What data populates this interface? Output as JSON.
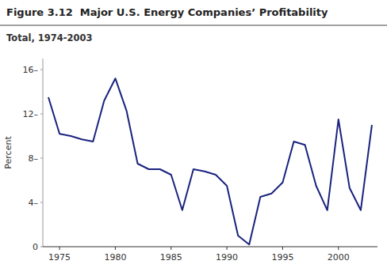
{
  "chart_data": {
    "type": "line",
    "title": "Figure 3.12  Major U.S. Energy Companies’ Profitability",
    "subtitle": "Total, 1974-2003",
    "ylabel": "Percent",
    "x": [
      1974,
      1975,
      1976,
      1977,
      1978,
      1979,
      1980,
      1981,
      1982,
      1983,
      1984,
      1985,
      1986,
      1987,
      1988,
      1989,
      1990,
      1991,
      1992,
      1993,
      1994,
      1995,
      1996,
      1997,
      1998,
      1999,
      2000,
      2001,
      2002,
      2003
    ],
    "values": [
      13.5,
      10.2,
      10.0,
      9.7,
      9.5,
      13.2,
      15.2,
      12.3,
      7.5,
      7.0,
      7.0,
      6.5,
      3.3,
      7.0,
      6.8,
      6.5,
      5.5,
      1.0,
      0.2,
      4.5,
      4.8,
      5.8,
      9.5,
      9.2,
      5.5,
      3.3,
      11.5,
      5.3,
      3.3,
      11.0
    ],
    "color": "#1a237e",
    "xlim": [
      1973.5,
      2003.5
    ],
    "ylim": [
      0,
      17
    ],
    "yticks": [
      0,
      {
        "value": 4,
        "label": "4–"
      },
      {
        "value": 8,
        "label": "8–"
      },
      {
        "value": 12,
        "label": "12–"
      },
      {
        "value": 16,
        "label": "16–"
      }
    ],
    "xticks": [
      1975,
      1980,
      1985,
      1990,
      1995,
      2000
    ],
    "grid": false
  }
}
